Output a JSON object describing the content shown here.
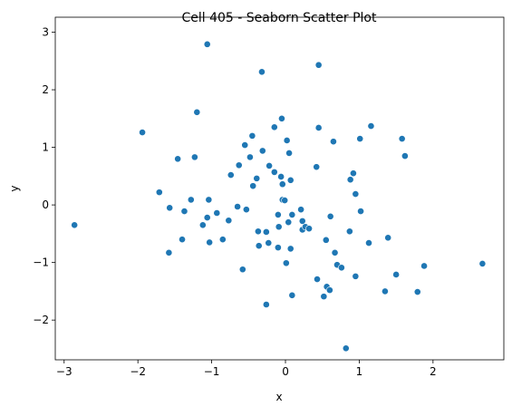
{
  "chart_data": {
    "type": "scatter",
    "title": "Cell 405 - Seaborn Scatter Plot",
    "x_label": "x",
    "y_label": "y",
    "color": "#1f77b4",
    "x": [
      -2.86,
      -1.94,
      -1.06,
      -0.32,
      0.45,
      -1.2,
      -1.71,
      -1.46,
      -1.23,
      -1.57,
      -1.37,
      -1.28,
      -1.4,
      -1.58,
      -1.04,
      -1.03,
      -1.06,
      -1.12,
      -0.85,
      -0.93,
      -0.77,
      -0.65,
      -0.53,
      -0.58,
      -0.74,
      -0.63,
      -0.55,
      -0.48,
      -0.45,
      -0.39,
      -0.44,
      -0.37,
      -0.31,
      -0.22,
      -0.15,
      -0.15,
      -0.05,
      0.02,
      0.05,
      -0.06,
      -0.04,
      -0.04,
      0.07,
      -0.01,
      -0.1,
      -0.09,
      -0.1,
      -0.26,
      -0.23,
      -0.36,
      -0.26,
      0.01,
      0.04,
      0.09,
      0.07,
      0.09,
      0.21,
      0.23,
      0.23,
      0.27,
      0.32,
      0.42,
      0.45,
      0.43,
      0.52,
      0.55,
      0.56,
      0.61,
      0.6,
      0.65,
      0.7,
      0.67,
      0.76,
      0.87,
      0.82,
      0.88,
      0.92,
      0.95,
      0.95,
      1.01,
      1.02,
      1.13,
      1.16,
      1.39,
      1.35,
      1.5,
      1.58,
      1.62,
      1.79,
      1.88,
      2.67
    ],
    "values": [
      -0.35,
      1.26,
      2.79,
      2.31,
      2.43,
      1.61,
      0.22,
      0.8,
      0.83,
      -0.05,
      -0.11,
      0.09,
      -0.6,
      -0.83,
      0.09,
      -0.65,
      -0.22,
      -0.35,
      -0.6,
      -0.14,
      -0.27,
      -0.03,
      -0.08,
      -1.12,
      0.52,
      0.69,
      1.04,
      0.83,
      1.2,
      0.46,
      0.33,
      -0.46,
      0.94,
      0.68,
      0.57,
      1.35,
      1.5,
      1.12,
      0.9,
      0.49,
      0.36,
      0.09,
      0.43,
      0.08,
      -0.17,
      -0.38,
      -0.74,
      -0.47,
      -0.66,
      -0.71,
      -1.73,
      -1.01,
      -0.3,
      -0.17,
      -0.76,
      -1.57,
      -0.08,
      -0.28,
      -0.43,
      -0.38,
      -0.41,
      0.66,
      1.34,
      -1.29,
      -1.59,
      -0.61,
      -1.42,
      -0.2,
      -1.48,
      1.1,
      -1.04,
      -0.83,
      -1.09,
      -0.46,
      -2.49,
      0.44,
      0.55,
      0.19,
      -1.24,
      1.15,
      -0.11,
      -0.66,
      1.37,
      -0.57,
      -1.5,
      -1.21,
      1.15,
      0.85,
      -1.51,
      -1.06,
      -1.02
    ],
    "xlim": [
      -3.12,
      2.96
    ],
    "ylim": [
      -2.69,
      3.26
    ],
    "xticks": [
      {
        "value": -3,
        "label": "−3"
      },
      {
        "value": -2,
        "label": "−2"
      },
      {
        "value": -1,
        "label": "−1"
      },
      0,
      1,
      2
    ],
    "yticks": [
      {
        "value": -2,
        "label": "−2"
      },
      {
        "value": -1,
        "label": "−1"
      },
      0,
      1,
      2,
      3
    ]
  }
}
